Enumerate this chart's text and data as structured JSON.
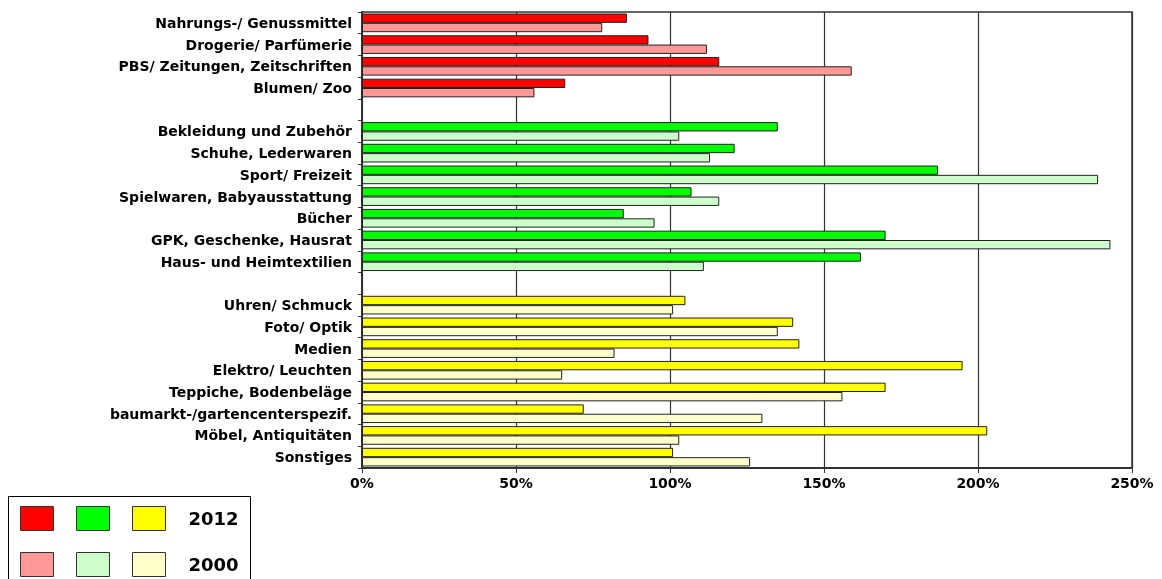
{
  "chart_data": {
    "type": "bar",
    "orientation": "horizontal",
    "categories": [
      "Nahrungs-/ Genussmittel",
      "Drogerie/ Parfümerie",
      "PBS/ Zeitungen, Zeitschriften",
      "Blumen/ Zoo",
      null,
      "Bekleidung und Zubehör",
      "Schuhe, Lederwaren",
      "Sport/ Freizeit",
      "Spielwaren, Babyausstattung",
      "Bücher",
      "GPK, Geschenke, Hausrat",
      "Haus- und Heimtextilien",
      null,
      "Uhren/ Schmuck",
      "Foto/ Optik",
      "Medien",
      "Elektro/ Leuchten",
      "Teppiche, Bodenbeläge",
      "baumarkt-/gartencenterspezif.",
      "Möbel, Antiquitäten",
      "Sonstiges"
    ],
    "series": [
      {
        "name": "2012",
        "colors": [
          "#ff0000",
          "#ff0000",
          "#ff0000",
          "#ff0000",
          null,
          "#00ff00",
          "#00ff00",
          "#00ff00",
          "#00ff00",
          "#00ff00",
          "#00ff00",
          "#00ff00",
          null,
          "#ffff00",
          "#ffff00",
          "#ffff00",
          "#ffff00",
          "#ffff00",
          "#ffff00",
          "#ffff00",
          "#ffff00"
        ],
        "values": [
          86,
          93,
          116,
          66,
          null,
          135,
          121,
          187,
          107,
          85,
          170,
          162,
          null,
          105,
          140,
          142,
          195,
          170,
          72,
          203,
          101
        ]
      },
      {
        "name": "2000",
        "colors": [
          "#ff9999",
          "#ff9999",
          "#ff9999",
          "#ff9999",
          null,
          "#ccffcc",
          "#ccffcc",
          "#ccffcc",
          "#ccffcc",
          "#ccffcc",
          "#ccffcc",
          "#ccffcc",
          null,
          "#ffffcc",
          "#ffffcc",
          "#ffffcc",
          "#ffffcc",
          "#ffffcc",
          "#ffffcc",
          "#ffffcc",
          "#ffffcc"
        ],
        "values": [
          78,
          112,
          159,
          56,
          null,
          103,
          113,
          239,
          116,
          95,
          243,
          111,
          null,
          101,
          135,
          82,
          65,
          156,
          130,
          103,
          126
        ]
      }
    ],
    "xlim": [
      0,
      250
    ],
    "xticks": [
      {
        "value": 0,
        "label": "0%"
      },
      {
        "value": 50,
        "label": "50%"
      },
      {
        "value": 100,
        "label": "100%"
      },
      {
        "value": 150,
        "label": "150%"
      },
      {
        "value": 200,
        "label": "200%"
      },
      {
        "value": 250,
        "label": "250%"
      }
    ],
    "grid": "x",
    "legend": "bottom left"
  }
}
